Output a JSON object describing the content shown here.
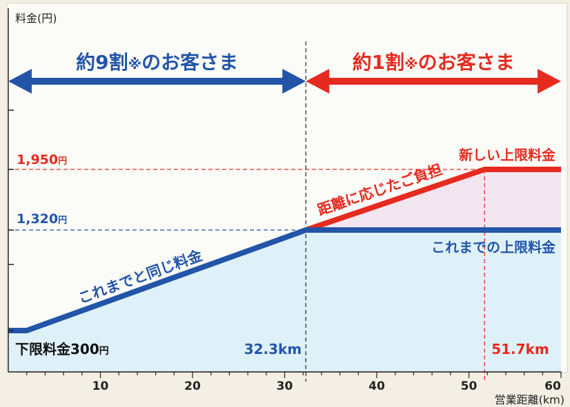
{
  "chart_data": {
    "type": "line",
    "ylabel": "料金(円)",
    "xlabel": "営業距離(km)",
    "x_ticks": [
      10,
      20,
      30,
      40,
      50,
      60
    ],
    "xlim": [
      0,
      60
    ],
    "ylim": [
      0,
      2400
    ],
    "grid": false,
    "series": [
      {
        "name": "これまでの上限料金",
        "color": "#2255a8",
        "points": [
          [
            0,
            300
          ],
          [
            2,
            300
          ],
          [
            32.3,
            1320
          ],
          [
            60,
            1320
          ]
        ]
      },
      {
        "name": "新しい上限料金",
        "color": "#e52b20",
        "points": [
          [
            32.3,
            1320
          ],
          [
            51.7,
            1950
          ],
          [
            60,
            1950
          ]
        ]
      }
    ],
    "y_reference_lines": [
      {
        "value": 1950,
        "label": "1,950",
        "unit": "円",
        "color": "#e52b20"
      },
      {
        "value": 1320,
        "label": "1,320",
        "unit": "円",
        "color": "#2255a8"
      }
    ],
    "x_reference_lines": [
      {
        "value": 32.3,
        "label": "32.3km",
        "color": "#2255a8"
      },
      {
        "value": 51.7,
        "label": "51.7km",
        "color": "#e52b20"
      }
    ],
    "annotations": {
      "segment_blue": "これまでと同じ料金",
      "segment_red": "距離に応じたご負担",
      "new_cap": "新しい上限料金",
      "old_cap": "これまでの上限料金",
      "min_fare_label": "下限料金300",
      "min_fare_unit": "円"
    },
    "range_arrows": [
      {
        "from": 0,
        "to": 32.3,
        "text_a": "約9割",
        "mark": "※",
        "text_b": "のお客さま",
        "color": "#2255a8"
      },
      {
        "from": 32.3,
        "to": 60,
        "text_a": "約1割",
        "mark": "※",
        "text_b": "のお客さま",
        "color": "#e52b20"
      }
    ]
  },
  "colors": {
    "blue": "#2255a8",
    "red": "#e52b20",
    "blue_fill": "#dff1f8",
    "pink_fill": "#f3e6f1",
    "background": "#f3efe4",
    "axis": "#222222"
  }
}
